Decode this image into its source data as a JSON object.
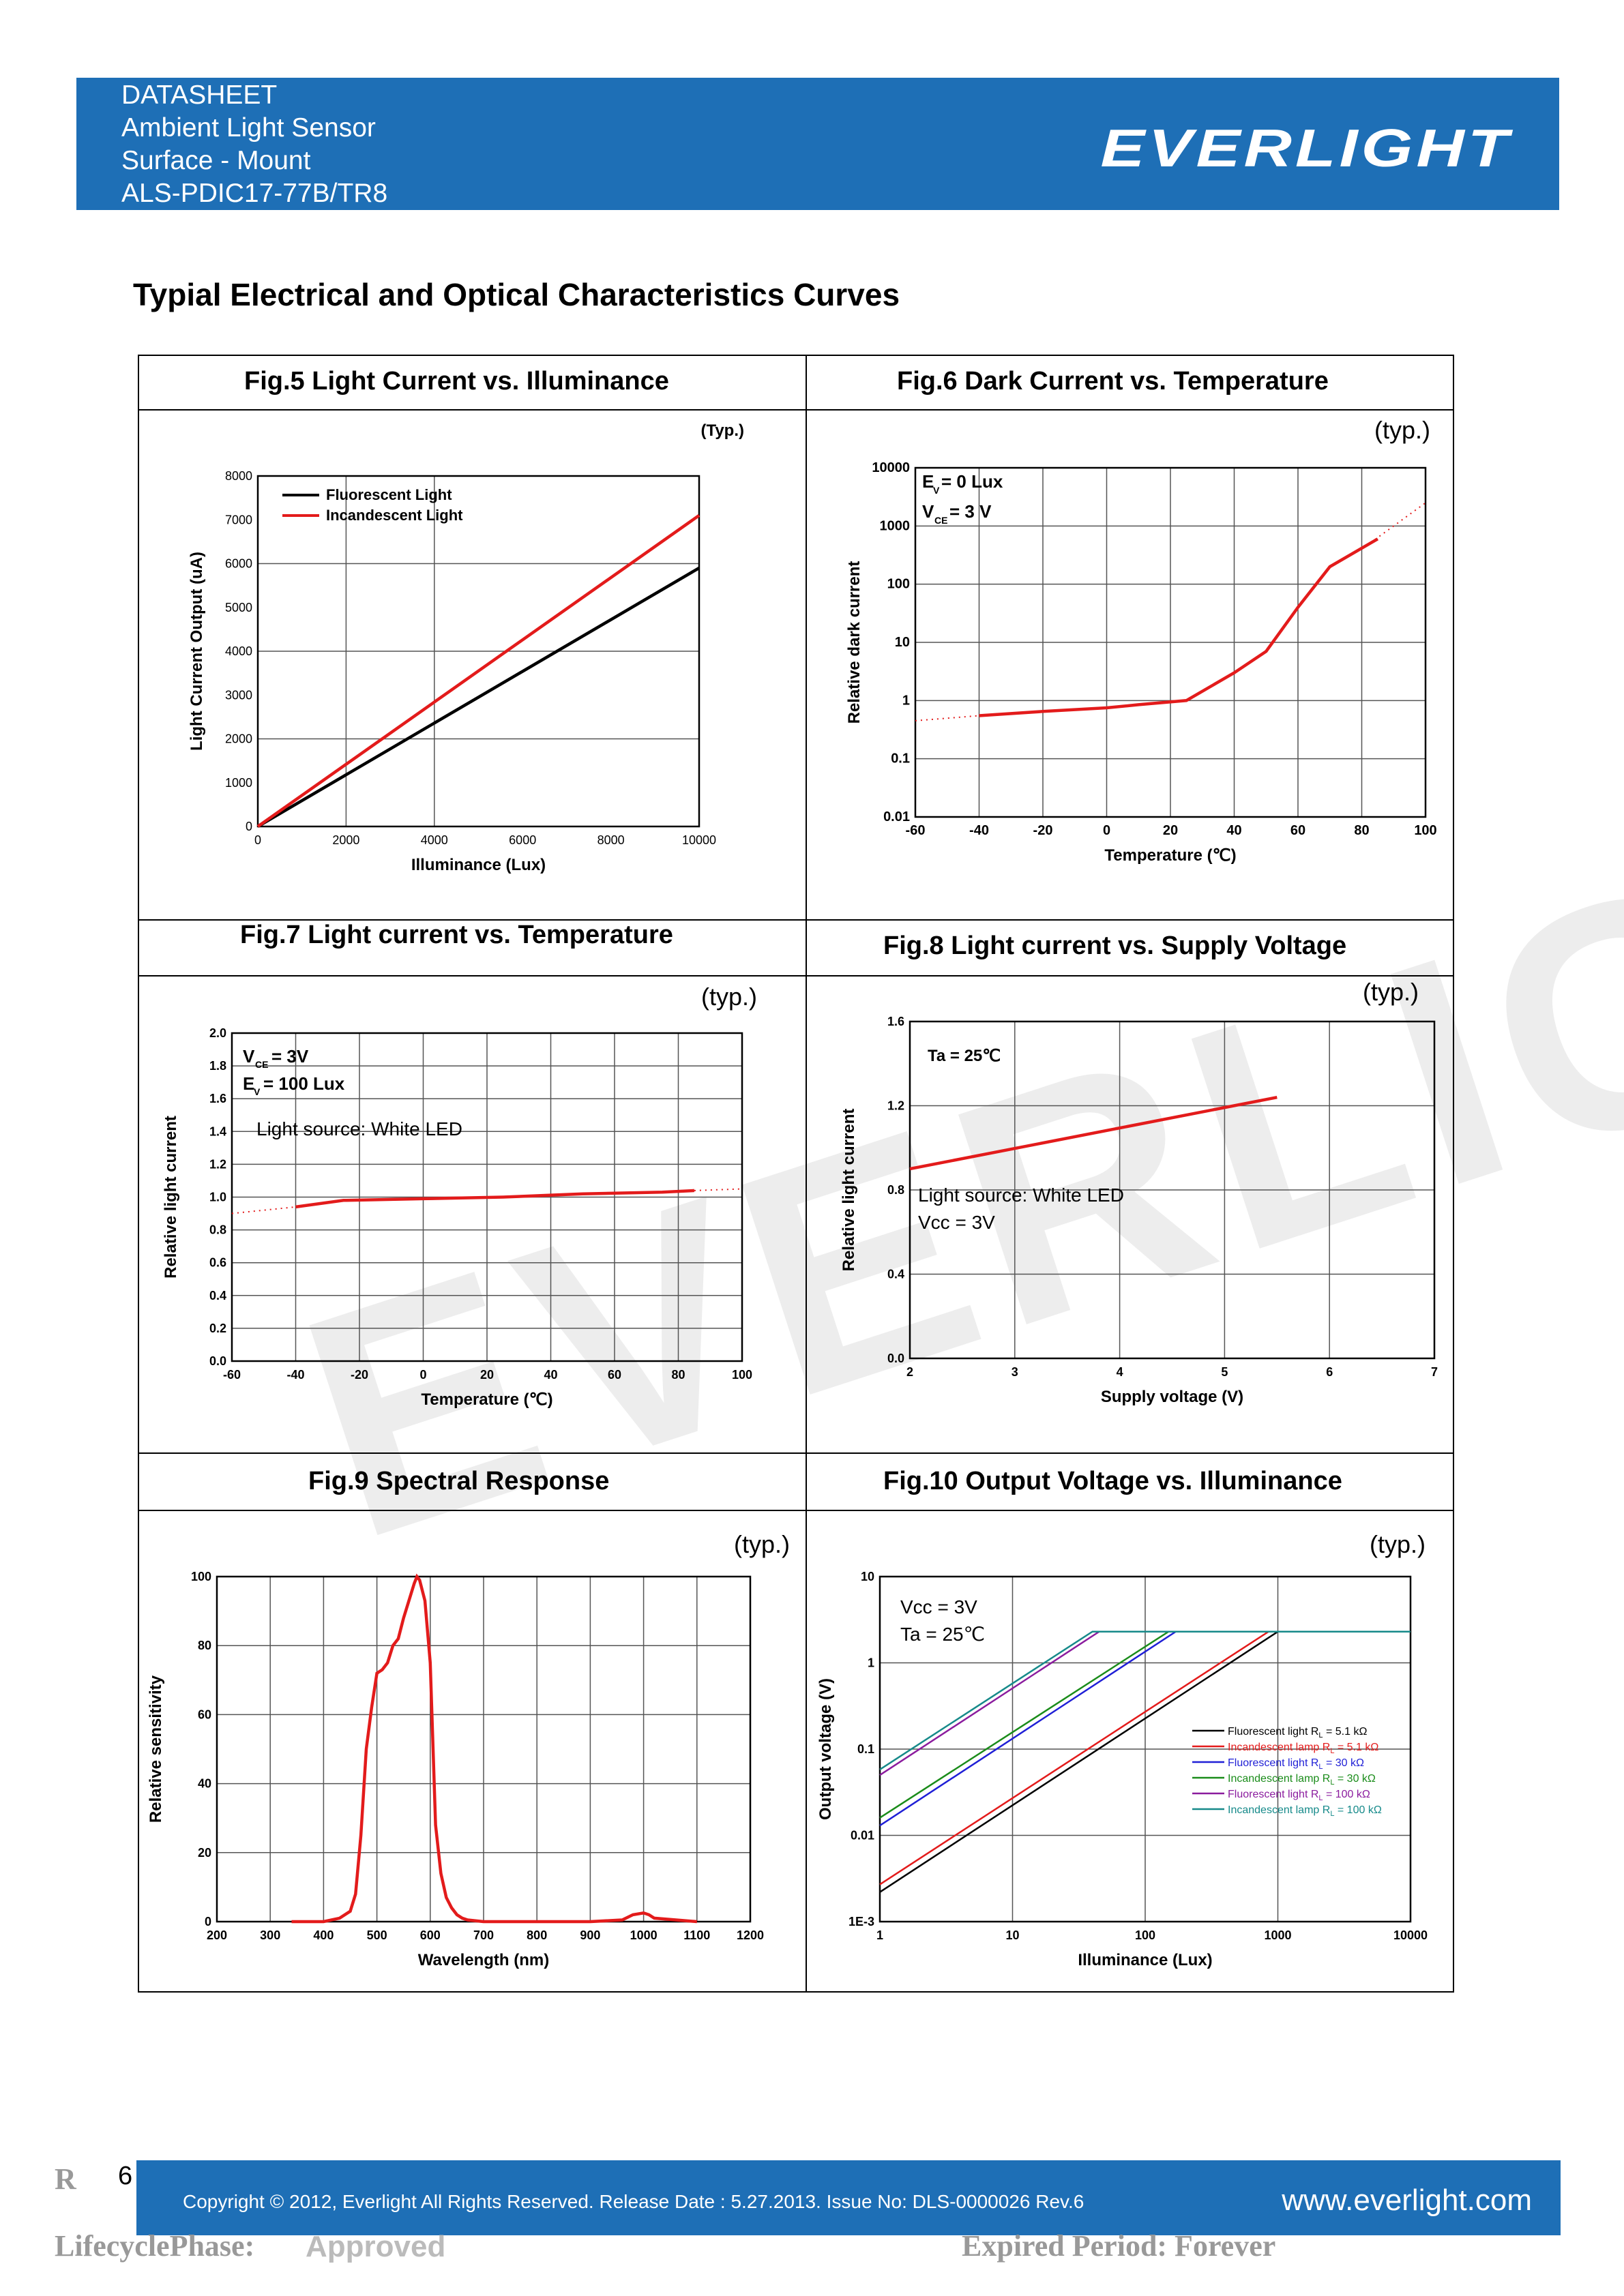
{
  "header": {
    "lines": [
      "DATASHEET",
      "Ambient Light Sensor",
      "Surface - Mount",
      "ALS-PDIC17-77B/TR8"
    ],
    "logo": "EVERLIGHT"
  },
  "section_title": "Typial Electrical and Optical Characteristics Curves",
  "watermark": "EVERLIGHT",
  "colors": {
    "header_blue": "#1e6fb6",
    "curve_red": "#e31b1b"
  },
  "figures": {
    "fig5": {
      "caption": "Fig.5    Light Current vs. Illuminance",
      "typ": "(Typ.)"
    },
    "fig6": {
      "caption": "Fig.6    Dark Current vs. Temperature",
      "typ": "(typ.)"
    },
    "fig7": {
      "caption": "Fig.7    Light current vs. Temperature",
      "typ": "(typ.)"
    },
    "fig8": {
      "caption": "Fig.8    Light current vs. Supply Voltage",
      "typ": "(typ.)"
    },
    "fig9": {
      "caption": "Fig.9    Spectral Response",
      "typ": "(typ.)"
    },
    "fig10": {
      "caption": "Fig.10    Output Voltage vs. Illuminance",
      "typ": "(typ.)"
    }
  },
  "chart_data": [
    {
      "id": "fig5",
      "type": "line",
      "xlabel": "Illuminance (Lux)",
      "ylabel": "Light Current Output (uA)",
      "xlim": [
        0,
        10000
      ],
      "ylim": [
        0,
        8000
      ],
      "xticks": [
        0,
        2000,
        4000,
        6000,
        8000,
        10000
      ],
      "yticks": [
        0,
        1000,
        2000,
        3000,
        4000,
        5000,
        6000,
        7000,
        8000
      ],
      "series": [
        {
          "name": "Fluorescent Light",
          "color": "#000000",
          "x": [
            0,
            10000
          ],
          "y": [
            0,
            5900
          ]
        },
        {
          "name": "Incandescent Light",
          "color": "#e31b1b",
          "x": [
            0,
            10000
          ],
          "y": [
            0,
            7100
          ]
        }
      ]
    },
    {
      "id": "fig6",
      "type": "line",
      "xlabel": "Temperature (℃)",
      "ylabel": "Relative dark current",
      "xlim": [
        -60,
        100
      ],
      "ylim": [
        0.01,
        10000
      ],
      "yscale": "log",
      "xticks": [
        -60,
        -40,
        -20,
        0,
        20,
        40,
        60,
        80,
        100
      ],
      "yticks": [
        0.01,
        0.1,
        1,
        10,
        100,
        1000,
        10000
      ],
      "ytick_labels": [
        "0.01",
        "0.1",
        "1",
        "10",
        "100",
        "1000",
        "10000"
      ],
      "annotations": [
        "E",
        "V",
        " = 0 Lux",
        "V",
        "CE",
        " = 3 V"
      ],
      "series": [
        {
          "name": "",
          "color": "#e31b1b",
          "x": [
            -40,
            -20,
            0,
            10,
            25,
            40,
            50,
            60,
            70,
            85
          ],
          "y": [
            0.55,
            0.65,
            0.75,
            0.85,
            1.0,
            3,
            7,
            40,
            200,
            600
          ]
        },
        {
          "name": "",
          "color": "#e31b1b",
          "dotted": true,
          "x": [
            -60,
            -40
          ],
          "y": [
            0.45,
            0.55
          ]
        },
        {
          "name": "",
          "color": "#e31b1b",
          "dotted": true,
          "x": [
            80,
            100
          ],
          "y": [
            400,
            2500
          ]
        }
      ]
    },
    {
      "id": "fig7",
      "type": "line",
      "xlabel": "Temperature (℃)",
      "ylabel": "Relative light current",
      "xlim": [
        -60,
        100
      ],
      "ylim": [
        0,
        2.0
      ],
      "xticks": [
        -60,
        -40,
        -20,
        0,
        20,
        40,
        60,
        80,
        100
      ],
      "yticks": [
        0.0,
        0.2,
        0.4,
        0.6,
        0.8,
        1.0,
        1.2,
        1.4,
        1.6,
        1.8,
        2.0
      ],
      "ytick_labels": [
        "0.0",
        "0.2",
        "0.4",
        "0.6",
        "0.8",
        "1.0",
        "1.2",
        "1.4",
        "1.6",
        "1.8",
        "2.0"
      ],
      "annotations": [
        "V",
        "CE",
        " = 3V",
        "E",
        "V",
        " = 100 Lux",
        "Light source: White LED"
      ],
      "series": [
        {
          "name": "",
          "color": "#e31b1b",
          "x": [
            -40,
            -25,
            0,
            25,
            50,
            75,
            85
          ],
          "y": [
            0.94,
            0.98,
            0.99,
            1.0,
            1.02,
            1.03,
            1.04
          ]
        },
        {
          "name": "",
          "color": "#e31b1b",
          "dotted": true,
          "x": [
            -60,
            -40
          ],
          "y": [
            0.9,
            0.94
          ]
        },
        {
          "name": "",
          "color": "#e31b1b",
          "dotted": true,
          "x": [
            85,
            100
          ],
          "y": [
            1.04,
            1.05
          ]
        }
      ]
    },
    {
      "id": "fig8",
      "type": "line",
      "xlabel": "Supply voltage (V)",
      "ylabel": "Relative light current",
      "xlim": [
        2,
        7
      ],
      "ylim": [
        0,
        1.6
      ],
      "xticks": [
        2,
        3,
        4,
        5,
        6,
        7
      ],
      "yticks": [
        0.0,
        0.4,
        0.8,
        1.2,
        1.6
      ],
      "ytick_labels": [
        "0.0",
        "0.4",
        "0.8",
        "1.2",
        "1.6"
      ],
      "annotations": [
        "Ta = 25℃",
        "Light source: White LED",
        "Vcc = 3V"
      ],
      "series": [
        {
          "name": "",
          "color": "#e31b1b",
          "x": [
            2,
            5.5
          ],
          "y": [
            0.9,
            1.24
          ]
        }
      ]
    },
    {
      "id": "fig9",
      "type": "line",
      "xlabel": "Wavelength (nm)",
      "ylabel": "Relative sensitivity",
      "xlim": [
        200,
        1200
      ],
      "ylim": [
        0,
        100
      ],
      "xticks": [
        200,
        300,
        400,
        500,
        600,
        700,
        800,
        900,
        1000,
        1100,
        1200
      ],
      "yticks": [
        0,
        20,
        40,
        60,
        80,
        100
      ],
      "series": [
        {
          "name": "",
          "color": "#e31b1b",
          "x": [
            340,
            400,
            430,
            450,
            460,
            470,
            480,
            490,
            500,
            510,
            520,
            530,
            540,
            550,
            560,
            570,
            575,
            580,
            590,
            600,
            610,
            620,
            630,
            640,
            650,
            660,
            670,
            700,
            800,
            900,
            960,
            980,
            1000,
            1010,
            1020,
            1100
          ],
          "y": [
            0,
            0,
            1,
            3,
            8,
            25,
            50,
            62,
            72,
            73,
            75,
            80,
            82,
            88,
            93,
            98,
            100,
            99,
            93,
            75,
            28,
            14,
            7,
            4,
            2,
            1,
            0.5,
            0,
            0,
            0,
            0.5,
            2,
            2.5,
            2,
            1,
            0
          ]
        }
      ]
    },
    {
      "id": "fig10",
      "type": "line",
      "xlabel": "Illuminance (Lux)",
      "ylabel": "Output voltage (V)",
      "xscale": "log",
      "yscale": "log",
      "xlim": [
        1,
        10000
      ],
      "ylim": [
        0.001,
        10
      ],
      "xticks": [
        1,
        10,
        100,
        1000,
        10000
      ],
      "xtick_labels": [
        "1",
        "10",
        "100",
        "1000",
        "10000"
      ],
      "yticks": [
        0.001,
        0.01,
        0.1,
        1,
        10
      ],
      "ytick_labels": [
        "1E-3",
        "0.01",
        "0.1",
        "1",
        "10"
      ],
      "annotations": [
        "Vcc = 3V",
        "Ta = 25℃"
      ],
      "series": [
        {
          "name": "Fluorescent light R",
          "sub": "L",
          "suffix": " = 5.1 kΩ",
          "color": "#000000",
          "x": [
            1,
            1000,
            10000
          ],
          "y": [
            0.0022,
            2.3,
            2.3
          ]
        },
        {
          "name": "Incandescent lamp  R",
          "sub": "L",
          "suffix": " = 5.1 kΩ",
          "color": "#e31b1b",
          "x": [
            1,
            850,
            10000
          ],
          "y": [
            0.0027,
            2.3,
            2.3
          ]
        },
        {
          "name": "Fluorescent light R",
          "sub": "L",
          "suffix": " = 30 kΩ",
          "color": "#1f1fd6",
          "x": [
            1,
            170,
            10000
          ],
          "y": [
            0.013,
            2.3,
            2.3
          ]
        },
        {
          "name": "Incandescent lamp  R",
          "sub": "L",
          "suffix": " = 30 kΩ",
          "color": "#1a8c1a",
          "x": [
            1,
            150,
            10000
          ],
          "y": [
            0.016,
            2.3,
            2.3
          ]
        },
        {
          "name": "Fluorescent light R",
          "sub": "L",
          "suffix": " = 100 kΩ",
          "color": "#8b1c9e",
          "x": [
            1,
            45,
            10000
          ],
          "y": [
            0.05,
            2.3,
            2.3
          ]
        },
        {
          "name": "Incandescent lamp  R",
          "sub": "L",
          "suffix": " = 100 kΩ",
          "color": "#168a8a",
          "x": [
            1,
            40,
            10000
          ],
          "y": [
            0.058,
            2.3,
            2.3
          ]
        }
      ]
    }
  ],
  "footer": {
    "page_number": "6",
    "copyright": "Copyright © 2012, Everlight All Rights Reserved. Release Date : 5.27.2013. Issue No: DLS-0000026    Rev.6",
    "website": "www.everlight.com"
  },
  "bottom": {
    "left_initial": "R",
    "lifecycle": "LifecyclePhase:",
    "approved": "Approved",
    "expired": "Expired Period: Forever"
  }
}
